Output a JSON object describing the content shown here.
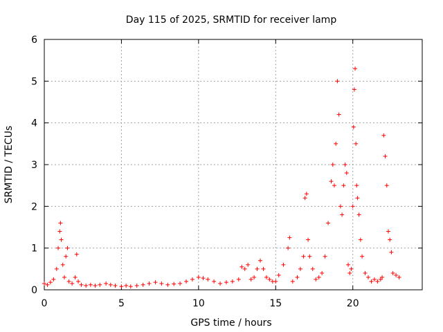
{
  "chart_data": {
    "type": "scatter",
    "title": "Day 115 of 2025, SRMTID for receiver lamp",
    "xlabel": "GPS time / hours",
    "ylabel": "SRMTID / TECUs",
    "xlim": [
      0,
      24.5
    ],
    "ylim": [
      0,
      6
    ],
    "xticks": [
      0,
      5,
      10,
      15,
      20
    ],
    "yticks": [
      0,
      1,
      2,
      3,
      4,
      5,
      6
    ],
    "grid": true,
    "series": [
      {
        "name": "SRMTID",
        "color": "#ff0000",
        "marker": "plus",
        "x": [
          0.0,
          0.2,
          0.4,
          0.6,
          0.8,
          0.9,
          1.0,
          1.05,
          1.1,
          1.2,
          1.3,
          1.4,
          1.5,
          1.6,
          1.8,
          2.0,
          2.1,
          2.2,
          2.4,
          2.7,
          3.0,
          3.3,
          3.6,
          4.0,
          4.3,
          4.6,
          5.0,
          5.3,
          5.6,
          6.0,
          6.4,
          6.8,
          7.2,
          7.6,
          8.0,
          8.4,
          8.8,
          9.2,
          9.6,
          10.0,
          10.3,
          10.6,
          11.0,
          11.4,
          11.8,
          12.2,
          12.6,
          12.8,
          13.0,
          13.2,
          13.4,
          13.6,
          13.8,
          14.0,
          14.2,
          14.4,
          14.6,
          14.8,
          15.0,
          15.2,
          15.5,
          15.8,
          15.9,
          16.1,
          16.4,
          16.6,
          16.8,
          16.9,
          17.0,
          17.1,
          17.2,
          17.4,
          17.6,
          17.8,
          18.0,
          18.2,
          18.4,
          18.6,
          18.7,
          18.8,
          18.9,
          19.0,
          19.1,
          19.2,
          19.3,
          19.4,
          19.5,
          19.6,
          19.7,
          19.8,
          19.9,
          20.0,
          20.05,
          20.1,
          20.15,
          20.2,
          20.25,
          20.3,
          20.4,
          20.5,
          20.6,
          20.8,
          21.0,
          21.2,
          21.4,
          21.6,
          21.8,
          21.9,
          22.0,
          22.1,
          22.2,
          22.3,
          22.4,
          22.5,
          22.6,
          22.8,
          23.0
        ],
        "values": [
          0.15,
          0.12,
          0.18,
          0.25,
          0.5,
          1.0,
          1.4,
          1.6,
          1.2,
          0.6,
          0.3,
          0.8,
          1.0,
          0.2,
          0.15,
          0.3,
          0.85,
          0.2,
          0.12,
          0.1,
          0.12,
          0.1,
          0.12,
          0.15,
          0.12,
          0.1,
          0.08,
          0.1,
          0.08,
          0.1,
          0.12,
          0.15,
          0.18,
          0.15,
          0.12,
          0.14,
          0.15,
          0.2,
          0.25,
          0.3,
          0.28,
          0.25,
          0.2,
          0.15,
          0.18,
          0.2,
          0.25,
          0.55,
          0.5,
          0.6,
          0.25,
          0.3,
          0.5,
          0.7,
          0.5,
          0.3,
          0.25,
          0.2,
          0.2,
          0.35,
          0.6,
          1.0,
          1.25,
          0.2,
          0.3,
          0.5,
          0.8,
          2.2,
          2.3,
          1.2,
          0.8,
          0.5,
          0.25,
          0.3,
          0.4,
          0.8,
          1.6,
          2.6,
          3.0,
          2.5,
          3.5,
          5.0,
          4.2,
          2.0,
          1.8,
          2.5,
          3.0,
          2.8,
          0.6,
          0.4,
          0.5,
          2.0,
          3.9,
          4.8,
          5.3,
          3.5,
          2.5,
          2.2,
          1.8,
          1.2,
          0.8,
          0.4,
          0.3,
          0.2,
          0.25,
          0.2,
          0.25,
          0.3,
          3.7,
          3.2,
          2.5,
          1.4,
          1.2,
          0.9,
          0.4,
          0.35,
          0.3
        ]
      }
    ]
  }
}
